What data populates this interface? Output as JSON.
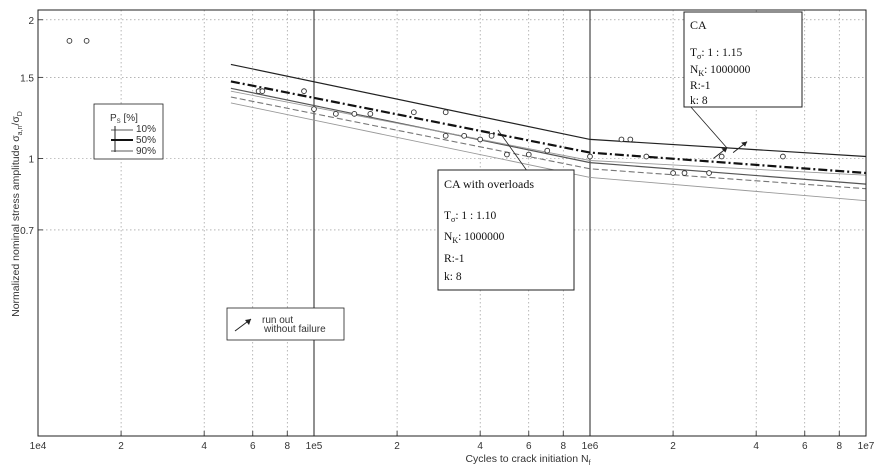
{
  "chart_data": {
    "type": "line",
    "x_scale": "log",
    "y_scale": "log",
    "xlim": [
      10000,
      10000000
    ],
    "ylim": [
      0.25,
      2.1
    ],
    "x_ticks": [
      {
        "v": 10000,
        "label": "1e4"
      },
      {
        "v": 20000,
        "label": "2"
      },
      {
        "v": 40000,
        "label": "4"
      },
      {
        "v": 60000,
        "label": "6"
      },
      {
        "v": 80000,
        "label": "8"
      },
      {
        "v": 100000,
        "label": "1e5"
      },
      {
        "v": 200000,
        "label": "2"
      },
      {
        "v": 400000,
        "label": "4"
      },
      {
        "v": 600000,
        "label": "6"
      },
      {
        "v": 800000,
        "label": "8"
      },
      {
        "v": 1000000,
        "label": "1e6"
      },
      {
        "v": 2000000,
        "label": "2"
      },
      {
        "v": 4000000,
        "label": "4"
      },
      {
        "v": 6000000,
        "label": "6"
      },
      {
        "v": 8000000,
        "label": "8"
      },
      {
        "v": 10000000,
        "label": "1e7"
      }
    ],
    "y_ticks": [
      {
        "v": 2,
        "label": "2"
      },
      {
        "v": 1.5,
        "label": "1.5"
      },
      {
        "v": 1,
        "label": "1"
      },
      {
        "v": 0.7,
        "label": "0.7"
      }
    ],
    "xlabel": "Cycles to crack initiation N",
    "xlabel_sub": "f",
    "ylabel": "Normalized nominal stress amplitude σ",
    "ylabel_sub": "a,n",
    "ylabel_tail": "/σ",
    "ylabel_tail_sub": "D",
    "grid": true,
    "series": [
      {
        "style": "ca10",
        "color": "#222222",
        "points": [
          [
            50000,
            1.6
          ],
          [
            1000000,
            1.1
          ],
          [
            10000000,
            1.01
          ]
        ]
      },
      {
        "style": "ca50",
        "color": "#111111",
        "points": [
          [
            50000,
            1.47
          ],
          [
            1000000,
            1.03
          ],
          [
            10000000,
            0.93
          ]
        ]
      },
      {
        "style": "ca90",
        "color": "#555555",
        "points": [
          [
            50000,
            1.42
          ],
          [
            1000000,
            0.98
          ],
          [
            10000000,
            0.88
          ]
        ]
      },
      {
        "style": "ol10",
        "color": "#999999",
        "points": [
          [
            50000,
            1.4
          ],
          [
            1000000,
            0.99
          ],
          [
            10000000,
            0.92
          ]
        ]
      },
      {
        "style": "ol50",
        "color": "#777777",
        "points": [
          [
            50000,
            1.36
          ],
          [
            1000000,
            0.95
          ],
          [
            10000000,
            0.86
          ]
        ]
      },
      {
        "style": "ol90",
        "color": "#999999",
        "points": [
          [
            50000,
            1.32
          ],
          [
            1000000,
            0.91
          ],
          [
            10000000,
            0.81
          ]
        ]
      }
    ],
    "scatter": [
      [
        13000,
        1.8
      ],
      [
        15000,
        1.8
      ],
      [
        63000,
        1.4
      ],
      [
        65000,
        1.4
      ],
      [
        92000,
        1.4
      ],
      [
        100000,
        1.28
      ],
      [
        120000,
        1.25
      ],
      [
        140000,
        1.25
      ],
      [
        160000,
        1.25
      ],
      [
        230000,
        1.26
      ],
      [
        300000,
        1.26
      ],
      [
        300000,
        1.12
      ],
      [
        350000,
        1.12
      ],
      [
        400000,
        1.1
      ],
      [
        440000,
        1.12
      ],
      [
        500000,
        1.02
      ],
      [
        600000,
        1.02
      ],
      [
        700000,
        1.04
      ],
      [
        1000000,
        1.01
      ],
      [
        1300000,
        1.1
      ],
      [
        1400000,
        1.1
      ],
      [
        1600000,
        1.01
      ],
      [
        2000000,
        0.93
      ],
      [
        2200000,
        0.93
      ],
      [
        2700000,
        0.93
      ],
      [
        3000000,
        1.01
      ],
      [
        5000000,
        1.01
      ]
    ],
    "runouts": [
      [
        2800000,
        1.0
      ],
      [
        3300000,
        1.03
      ]
    ],
    "legend": {
      "title": "P",
      "title_sub": "S",
      "title_suffix": " [%]",
      "entries": [
        "10%",
        "50%",
        "90%"
      ]
    },
    "runout_label": "run out",
    "runout_sub": "without failure",
    "annotations": {
      "ca": {
        "title": "CA",
        "t_label": "T",
        "t_sub": "σ",
        "t_value": ": 1 : 1.15",
        "n_label": "N",
        "n_sub": "K",
        "n_value": ": 1000000",
        "r_line": "R:-1",
        "k_line": "k: 8"
      },
      "overloads": {
        "title": "CA with overloads",
        "t_label": "T",
        "t_sub": "σ",
        "t_value": ":  1 : 1.10",
        "n_label": "N",
        "n_sub": "K",
        "n_value": ": 1000000",
        "r_line": "R:-1",
        "k_line": "k: 8"
      }
    }
  }
}
